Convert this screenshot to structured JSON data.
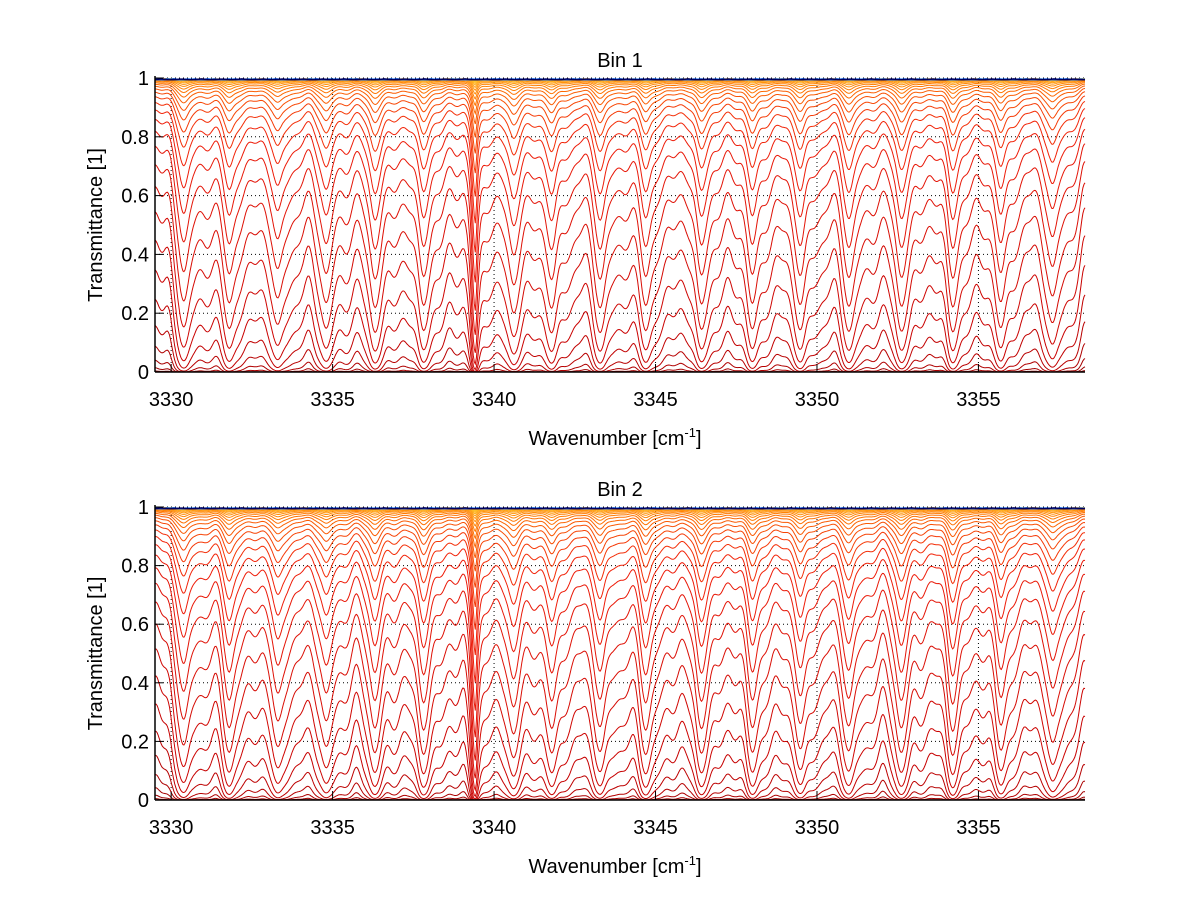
{
  "chart_data": [
    {
      "type": "line",
      "title": "Bin 1",
      "xlabel": "Wavenumber [cm",
      "xlabel_sup": "-1",
      "xlabel_end": "]",
      "ylabel": "Transmittance [1]",
      "xlim": [
        3329.5,
        3358.3
      ],
      "ylim": [
        0,
        1
      ],
      "xticks": [
        3330,
        3335,
        3340,
        3345,
        3350,
        3355
      ],
      "yticks": [
        0,
        0.2,
        0.4,
        0.6,
        0.8,
        1
      ],
      "ytick_labels": [
        "0",
        "0.2",
        "0.4",
        "0.6",
        "0.8",
        "1"
      ],
      "grid": true,
      "line_centers": [
        3330.4,
        3331.8,
        3333.3,
        3334.8,
        3336.3,
        3337.8,
        3339.4,
        3340.6,
        3341.8,
        3343.3,
        3344.7,
        3346.4,
        3348.0,
        3349.5,
        3351.0,
        3352.6,
        3354.2,
        3355.7,
        3357.3
      ],
      "n_curves": 32,
      "min_transmittance_per_curve_range": [
        0.0,
        1.0
      ]
    },
    {
      "type": "line",
      "title": "Bin 2",
      "xlabel": "Wavenumber [cm",
      "xlabel_sup": "-1",
      "xlabel_end": "]",
      "ylabel": "Transmittance [1]",
      "xlim": [
        3329.5,
        3358.3
      ],
      "ylim": [
        0,
        1
      ],
      "xticks": [
        3330,
        3335,
        3340,
        3345,
        3350,
        3355
      ],
      "yticks": [
        0,
        0.2,
        0.4,
        0.6,
        0.8,
        1
      ],
      "ytick_labels": [
        "0",
        "0.2",
        "0.4",
        "0.6",
        "0.8",
        "1"
      ],
      "grid": true,
      "line_centers": [
        3330.4,
        3331.8,
        3333.3,
        3334.8,
        3336.3,
        3337.8,
        3339.4,
        3340.6,
        3341.8,
        3343.3,
        3344.7,
        3346.4,
        3348.0,
        3349.5,
        3351.0,
        3352.6,
        3354.2,
        3355.7,
        3357.3
      ],
      "n_curves": 34,
      "min_transmittance_per_curve_range": [
        0.0,
        1.0
      ]
    }
  ]
}
